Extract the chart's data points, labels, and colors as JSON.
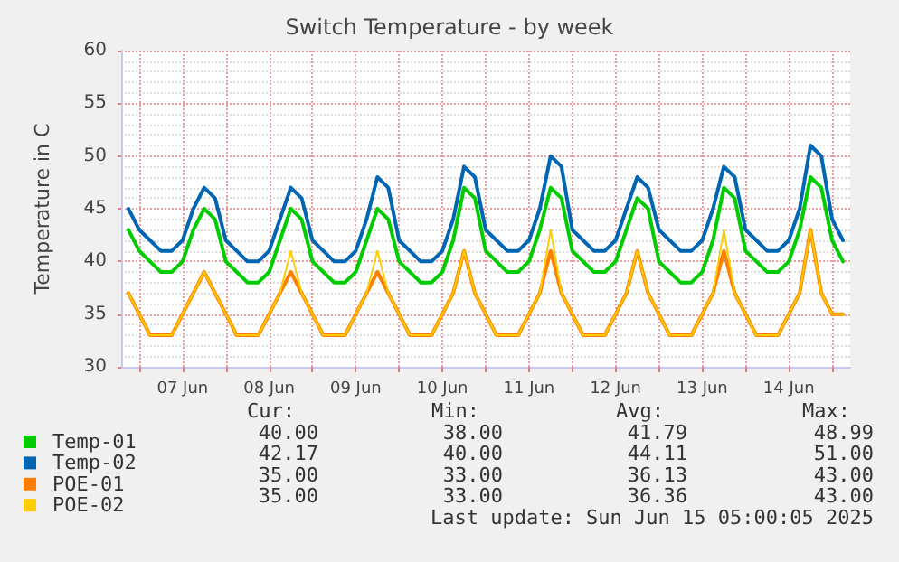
{
  "chart_data": {
    "type": "line",
    "title": "Switch Temperature - by week",
    "ylabel": "Temperature in C",
    "x": [
      "2025-06-06T21:00",
      "2025-06-07T00:00",
      "2025-06-07T03:00",
      "2025-06-07T06:00",
      "2025-06-07T09:00",
      "2025-06-07T12:00",
      "2025-06-07T15:00",
      "2025-06-07T18:00",
      "2025-06-07T21:00",
      "2025-06-08T00:00",
      "2025-06-08T03:00",
      "2025-06-08T06:00",
      "2025-06-08T09:00",
      "2025-06-08T12:00",
      "2025-06-08T15:00",
      "2025-06-08T18:00",
      "2025-06-08T21:00",
      "2025-06-09T00:00",
      "2025-06-09T03:00",
      "2025-06-09T06:00",
      "2025-06-09T09:00",
      "2025-06-09T12:00",
      "2025-06-09T15:00",
      "2025-06-09T18:00",
      "2025-06-09T21:00",
      "2025-06-10T00:00",
      "2025-06-10T03:00",
      "2025-06-10T06:00",
      "2025-06-10T09:00",
      "2025-06-10T12:00",
      "2025-06-10T15:00",
      "2025-06-10T18:00",
      "2025-06-10T21:00",
      "2025-06-11T00:00",
      "2025-06-11T03:00",
      "2025-06-11T06:00",
      "2025-06-11T09:00",
      "2025-06-11T12:00",
      "2025-06-11T15:00",
      "2025-06-11T18:00",
      "2025-06-11T21:00",
      "2025-06-12T00:00",
      "2025-06-12T03:00",
      "2025-06-12T06:00",
      "2025-06-12T09:00",
      "2025-06-12T12:00",
      "2025-06-12T15:00",
      "2025-06-12T18:00",
      "2025-06-12T21:00",
      "2025-06-13T00:00",
      "2025-06-13T03:00",
      "2025-06-13T06:00",
      "2025-06-13T09:00",
      "2025-06-13T12:00",
      "2025-06-13T15:00",
      "2025-06-13T18:00",
      "2025-06-13T21:00",
      "2025-06-14T00:00",
      "2025-06-14T03:00",
      "2025-06-14T06:00",
      "2025-06-14T09:00",
      "2025-06-14T12:00",
      "2025-06-14T15:00",
      "2025-06-14T18:00",
      "2025-06-14T21:00",
      "2025-06-15T00:00",
      "2025-06-15T03:00"
    ],
    "series": [
      {
        "name": "Temp-01",
        "color": "#00cc00",
        "values": [
          43,
          41,
          40,
          39,
          39,
          40,
          43,
          45,
          44,
          40,
          39,
          38,
          38,
          39,
          42,
          45,
          44,
          40,
          39,
          38,
          38,
          39,
          42,
          45,
          44,
          40,
          39,
          38,
          38,
          39,
          42,
          47,
          46,
          41,
          40,
          39,
          39,
          40,
          43,
          47,
          46,
          41,
          40,
          39,
          39,
          40,
          43,
          46,
          45,
          40,
          39,
          38,
          38,
          39,
          42,
          47,
          46,
          41,
          40,
          39,
          39,
          40,
          43,
          48,
          47,
          42,
          40
        ]
      },
      {
        "name": "Temp-02",
        "color": "#0066b3",
        "values": [
          45,
          43,
          42,
          41,
          41,
          42,
          45,
          47,
          46,
          42,
          41,
          40,
          40,
          41,
          44,
          47,
          46,
          42,
          41,
          40,
          40,
          41,
          44,
          48,
          47,
          42,
          41,
          40,
          40,
          41,
          44,
          49,
          48,
          43,
          42,
          41,
          41,
          42,
          45,
          50,
          49,
          43,
          42,
          41,
          41,
          42,
          45,
          48,
          47,
          43,
          42,
          41,
          41,
          42,
          45,
          49,
          48,
          43,
          42,
          41,
          41,
          42,
          45,
          51,
          50,
          44,
          42
        ]
      },
      {
        "name": "POE-01",
        "color": "#ff8000",
        "values": [
          37,
          35,
          33,
          33,
          33,
          35,
          37,
          39,
          37,
          35,
          33,
          33,
          33,
          35,
          37,
          39,
          37,
          35,
          33,
          33,
          33,
          35,
          37,
          39,
          37,
          35,
          33,
          33,
          33,
          35,
          37,
          41,
          37,
          35,
          33,
          33,
          33,
          35,
          37,
          41,
          37,
          35,
          33,
          33,
          33,
          35,
          37,
          41,
          37,
          35,
          33,
          33,
          33,
          35,
          37,
          41,
          37,
          35,
          33,
          33,
          33,
          35,
          37,
          43,
          37,
          35,
          35
        ]
      },
      {
        "name": "POE-02",
        "color": "#ffcc00",
        "values": [
          37,
          35,
          33,
          33,
          33,
          35,
          37,
          39,
          37,
          35,
          33,
          33,
          33,
          35,
          37,
          41,
          37,
          35,
          33,
          33,
          33,
          35,
          37,
          41,
          37,
          35,
          33,
          33,
          33,
          35,
          37,
          41,
          37,
          35,
          33,
          33,
          33,
          35,
          37,
          43,
          37,
          35,
          33,
          33,
          33,
          35,
          37,
          41,
          37,
          35,
          33,
          33,
          33,
          35,
          37,
          43,
          37,
          35,
          33,
          33,
          33,
          35,
          37,
          43,
          37,
          35,
          35
        ]
      }
    ],
    "xlim": [
      "2025-06-06T19:00",
      "2025-06-15T05:00"
    ],
    "xticks": [
      {
        "value": "2025-06-07T00:00",
        "label": null
      },
      {
        "value": "2025-06-07T12:00",
        "label": "07 Jun"
      },
      {
        "value": "2025-06-08T00:00",
        "label": null
      },
      {
        "value": "2025-06-08T12:00",
        "label": "08 Jun"
      },
      {
        "value": "2025-06-09T00:00",
        "label": null
      },
      {
        "value": "2025-06-09T12:00",
        "label": "09 Jun"
      },
      {
        "value": "2025-06-10T00:00",
        "label": null
      },
      {
        "value": "2025-06-10T12:00",
        "label": "10 Jun"
      },
      {
        "value": "2025-06-11T00:00",
        "label": null
      },
      {
        "value": "2025-06-11T12:00",
        "label": "11 Jun"
      },
      {
        "value": "2025-06-12T00:00",
        "label": null
      },
      {
        "value": "2025-06-12T12:00",
        "label": "12 Jun"
      },
      {
        "value": "2025-06-13T00:00",
        "label": null
      },
      {
        "value": "2025-06-13T12:00",
        "label": "13 Jun"
      },
      {
        "value": "2025-06-14T00:00",
        "label": null
      },
      {
        "value": "2025-06-14T12:00",
        "label": "14 Jun"
      },
      {
        "value": "2025-06-15T00:00",
        "label": null
      }
    ],
    "ylim": [
      30,
      60
    ],
    "yticks": [
      30,
      35,
      40,
      45,
      50,
      55,
      60
    ],
    "grid": true,
    "legend": "bottom left",
    "marker": "none",
    "line_style": "solid",
    "annotations": [
      "Cur:",
      "Min:",
      "Avg:",
      "Max:",
      "40.00",
      "38.00",
      "41.79",
      "48.99",
      "42.17",
      "40.00",
      "44.11",
      "51.00",
      "35.00",
      "33.00",
      "36.13",
      "43.00",
      "35.00",
      "33.00",
      "36.36",
      "43.00",
      "Last update: Sun Jun 15 05:00:05 2025"
    ]
  }
}
